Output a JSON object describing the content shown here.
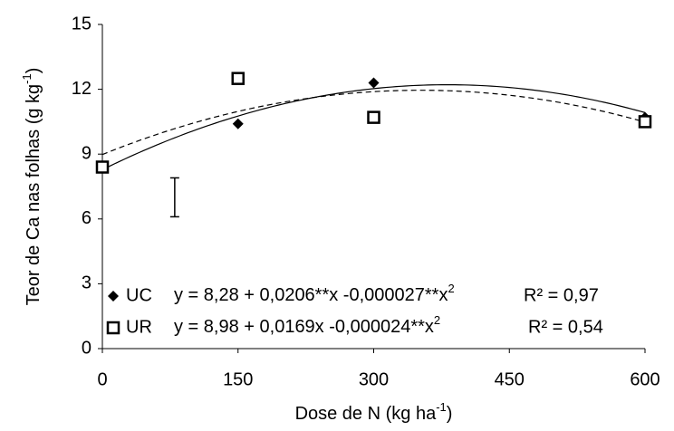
{
  "chart_data": {
    "type": "scatter",
    "x_label": {
      "text": "Dose de N (kg ha",
      "sup": "-1",
      "end": ")"
    },
    "y_label": {
      "text": "Teor de Ca nas folhas (g kg",
      "sup": "-1",
      "end": ")"
    },
    "x": [
      0,
      150,
      300,
      600
    ],
    "series": [
      {
        "name": "UC",
        "marker": "diamond",
        "color": "#000000",
        "line": "solid",
        "values": [
          8.4,
          10.4,
          12.3,
          10.7
        ],
        "fit_coefficients": [
          8.28,
          0.0206,
          -2.7e-05
        ],
        "equation": "y = 8,28 + 0,0206**x -0,000027**x",
        "equation_sup": "2",
        "r2": "R² = 0,97"
      },
      {
        "name": "UR",
        "marker": "square",
        "color": "#000000",
        "line": "dashed",
        "values": [
          8.4,
          12.5,
          10.7,
          10.5
        ],
        "fit_coefficients": [
          8.98,
          0.0169,
          -2.4e-05
        ],
        "equation": "y = 8,98 + 0,0169x -0,000024**x",
        "equation_sup": "2",
        "r2": "R² = 0,54"
      }
    ],
    "error_bar": {
      "x": 80,
      "low": 6.1,
      "high": 7.9
    },
    "xlim": [
      0,
      600
    ],
    "xticks": [
      0,
      150,
      300,
      450,
      600
    ],
    "ylim": [
      0,
      15
    ],
    "yticks": [
      0,
      3,
      6,
      9,
      12,
      15
    ]
  }
}
